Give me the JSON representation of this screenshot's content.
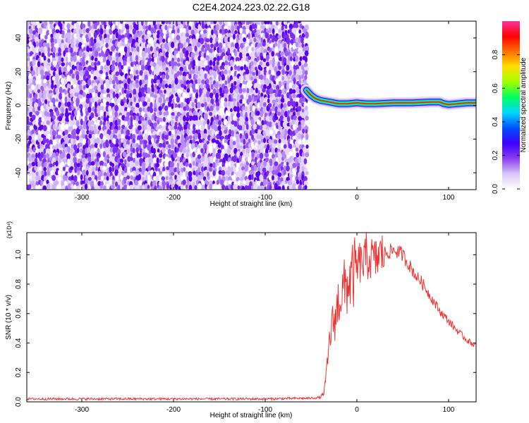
{
  "title": "C2E4.2024.223.02.22.G18",
  "chart_data": [
    {
      "type": "heatmap",
      "title": "C2E4.2024.223.02.22.G18",
      "xlabel": "Height of straight line (km)",
      "ylabel": "Frequency (Hz)",
      "xlim": [
        -360,
        130
      ],
      "ylim": [
        -50,
        50
      ],
      "x_ticks": [
        -300,
        -200,
        -100,
        0,
        100
      ],
      "y_ticks": [
        -40,
        -20,
        0,
        20,
        40
      ],
      "noise_region_x": [
        -360,
        -55
      ],
      "signal_trace": {
        "x": [
          -55,
          -50,
          -45,
          -40,
          -35,
          -30,
          -25,
          -20,
          -10,
          0,
          10,
          20,
          40,
          60,
          80,
          90,
          95,
          100,
          110,
          120,
          130
        ],
        "freq": [
          9,
          6,
          4,
          3,
          2.5,
          2,
          1.5,
          1,
          1,
          1.5,
          1,
          1,
          1.5,
          1.5,
          2,
          2,
          1,
          0.5,
          1,
          1.5,
          1.5
        ]
      },
      "colorbar": {
        "label": "Normalized spectral amplitude",
        "range": [
          0,
          1
        ],
        "ticks": [
          "0.0",
          "0.2",
          "0.4",
          "0.6",
          "0.8"
        ],
        "colors": [
          "#ffffff",
          "#d8c4f4",
          "#8c3cf0",
          "#3a00ff",
          "#0050ff",
          "#00d8ff",
          "#00ff60",
          "#a0ff00",
          "#ffe000",
          "#ff7000",
          "#ff0000",
          "#ff3399"
        ]
      }
    },
    {
      "type": "line",
      "xlabel": "Height of straight line (km)",
      "ylabel": "SNR (10 * v/v)",
      "multiplier": "(x10⁴)",
      "xlim": [
        -360,
        130
      ],
      "ylim": [
        0,
        1.15
      ],
      "x_ticks": [
        -300,
        -200,
        -100,
        0,
        100
      ],
      "y_ticks": [
        "0.0",
        "0.2",
        "0.4",
        "0.6",
        "0.8",
        "1.0"
      ],
      "line_color": "#ee3333",
      "series": [
        {
          "name": "SNR",
          "x": [
            -360,
            -300,
            -200,
            -100,
            -50,
            -40,
            -36,
            -33,
            -30,
            -28,
            -25,
            -22,
            -20,
            -18,
            -15,
            -10,
            -5,
            0,
            3,
            5,
            10,
            15,
            20,
            25,
            30,
            35,
            40,
            45,
            50,
            55,
            60,
            65,
            70,
            80,
            90,
            100,
            110,
            120,
            130
          ],
          "values": [
            0.02,
            0.02,
            0.02,
            0.02,
            0.025,
            0.03,
            0.06,
            0.2,
            0.4,
            0.5,
            0.55,
            0.6,
            0.7,
            0.72,
            0.75,
            0.8,
            0.85,
            0.9,
            0.95,
            0.93,
            0.97,
            0.98,
            0.96,
            1.0,
            1.01,
            1.02,
            1.03,
            1.02,
            1.0,
            0.95,
            0.9,
            0.85,
            0.82,
            0.72,
            0.62,
            0.55,
            0.48,
            0.42,
            0.38
          ]
        }
      ],
      "spike": {
        "x": 10,
        "value": 1.15
      }
    }
  ]
}
